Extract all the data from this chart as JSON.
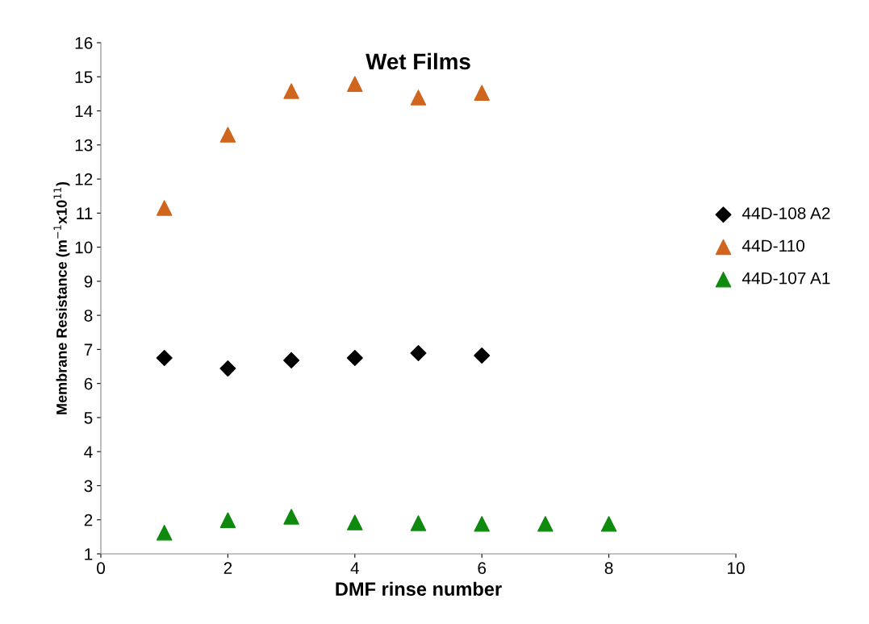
{
  "chart_data": {
    "type": "scatter",
    "title": "Wet Films",
    "xlabel": "DMF rinse number",
    "ylabel": "Membrane Resistance (m$^{−1}$x10$^{11}$)",
    "xlim": [
      0,
      10
    ],
    "xticks": [
      0,
      2,
      4,
      6,
      8,
      10
    ],
    "ylim": [
      1,
      16
    ],
    "yticks": [
      1,
      2,
      3,
      4,
      5,
      6,
      7,
      8,
      9,
      10,
      11,
      12,
      13,
      14,
      15,
      16
    ],
    "grid": false,
    "legend": "right",
    "series": [
      {
        "name": "44D-108 A2",
        "color": "#000000",
        "marker": "diamond",
        "x": [
          1,
          2,
          3,
          4,
          5,
          6
        ],
        "values": [
          6.75,
          6.44,
          6.68,
          6.75,
          6.89,
          6.82
        ]
      },
      {
        "name": "44D-110",
        "color": "#d0651d",
        "marker": "triangle",
        "x": [
          1,
          2,
          3,
          4,
          5,
          6
        ],
        "values": [
          11.15,
          13.3,
          14.58,
          14.79,
          14.39,
          14.53
        ]
      },
      {
        "name": "44D-107 A1",
        "color": "#0e8a0e",
        "marker": "triangle",
        "x": [
          1,
          2,
          3,
          4,
          5,
          6,
          7,
          8
        ],
        "values": [
          1.62,
          1.99,
          2.09,
          1.92,
          1.9,
          1.88,
          1.88,
          1.88
        ]
      }
    ]
  }
}
